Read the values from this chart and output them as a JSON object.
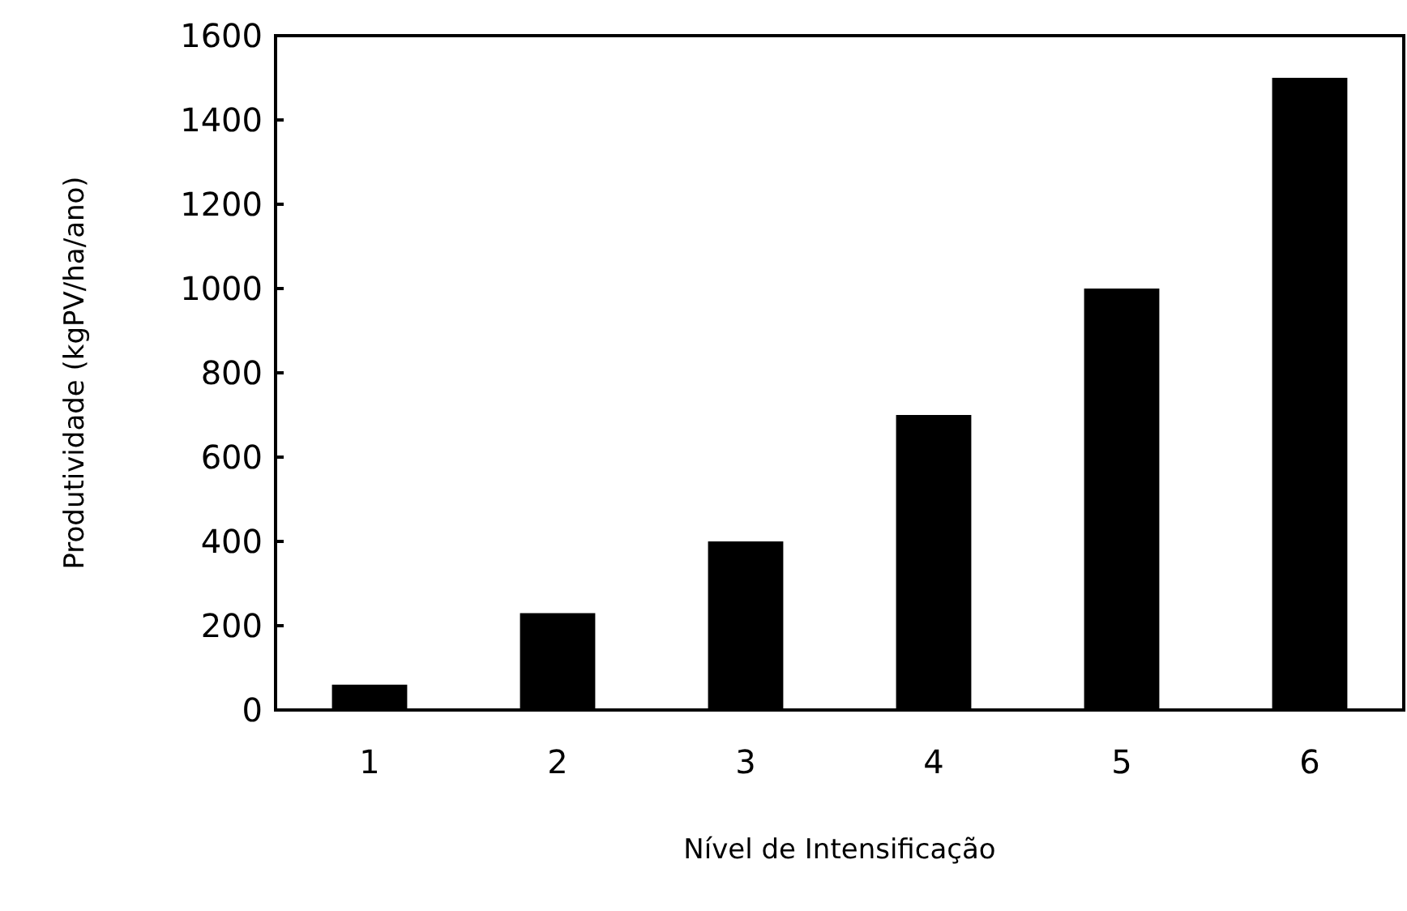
{
  "chart_data": {
    "type": "bar",
    "xlabel": "Nível de Intensificação",
    "ylabel": "Produtividade (kgPV/ha/ano)",
    "categories": [
      "1",
      "2",
      "3",
      "4",
      "5",
      "6"
    ],
    "values": [
      60,
      230,
      400,
      700,
      1000,
      1500
    ],
    "color": "#000000",
    "ylim": [
      0,
      1600
    ],
    "yticks": [
      0,
      200,
      400,
      600,
      800,
      1000,
      1200,
      1400,
      1600
    ],
    "grid": false
  }
}
